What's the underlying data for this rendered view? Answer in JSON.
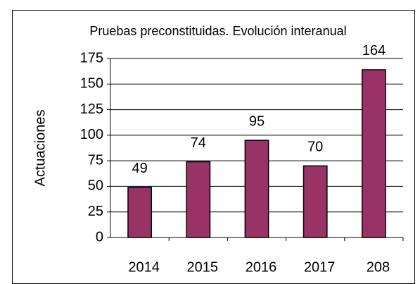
{
  "chart_data": {
    "type": "bar",
    "title": "Pruebas preconstituidas. Evolución interanual",
    "y_label": "Actuaciones",
    "categories": [
      "2014",
      "2015",
      "2016",
      "2017",
      "208"
    ],
    "values": [
      49,
      74,
      95,
      70,
      164
    ],
    "color": "#993366",
    "ylim": [
      0,
      175
    ],
    "yticks": [
      0,
      25,
      50,
      75,
      100,
      125,
      150,
      175
    ],
    "grid": true
  }
}
